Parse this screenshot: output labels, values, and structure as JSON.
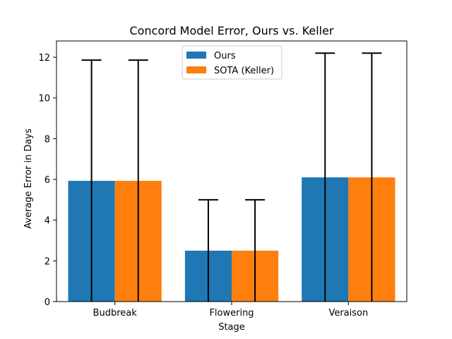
{
  "chart_data": {
    "type": "bar",
    "title": "Concord Model Error, Ours vs. Keller",
    "xlabel": "Stage",
    "ylabel": "Average Error in Days",
    "categories": [
      "Budbreak",
      "Flowering",
      "Veraison"
    ],
    "series": [
      {
        "name": "Ours",
        "color": "#1f77b4",
        "values": [
          5.93,
          2.5,
          6.1
        ],
        "error": [
          5.93,
          2.5,
          6.1
        ]
      },
      {
        "name": "SOTA (Keller)",
        "color": "#ff7f0e",
        "values": [
          5.93,
          2.5,
          6.1
        ],
        "error": [
          5.93,
          2.5,
          6.1
        ]
      }
    ],
    "ylim": [
      0,
      12.8
    ],
    "yticks": [
      0,
      2,
      4,
      6,
      8,
      10,
      12
    ],
    "grid": false,
    "legend_position": "top-center"
  }
}
